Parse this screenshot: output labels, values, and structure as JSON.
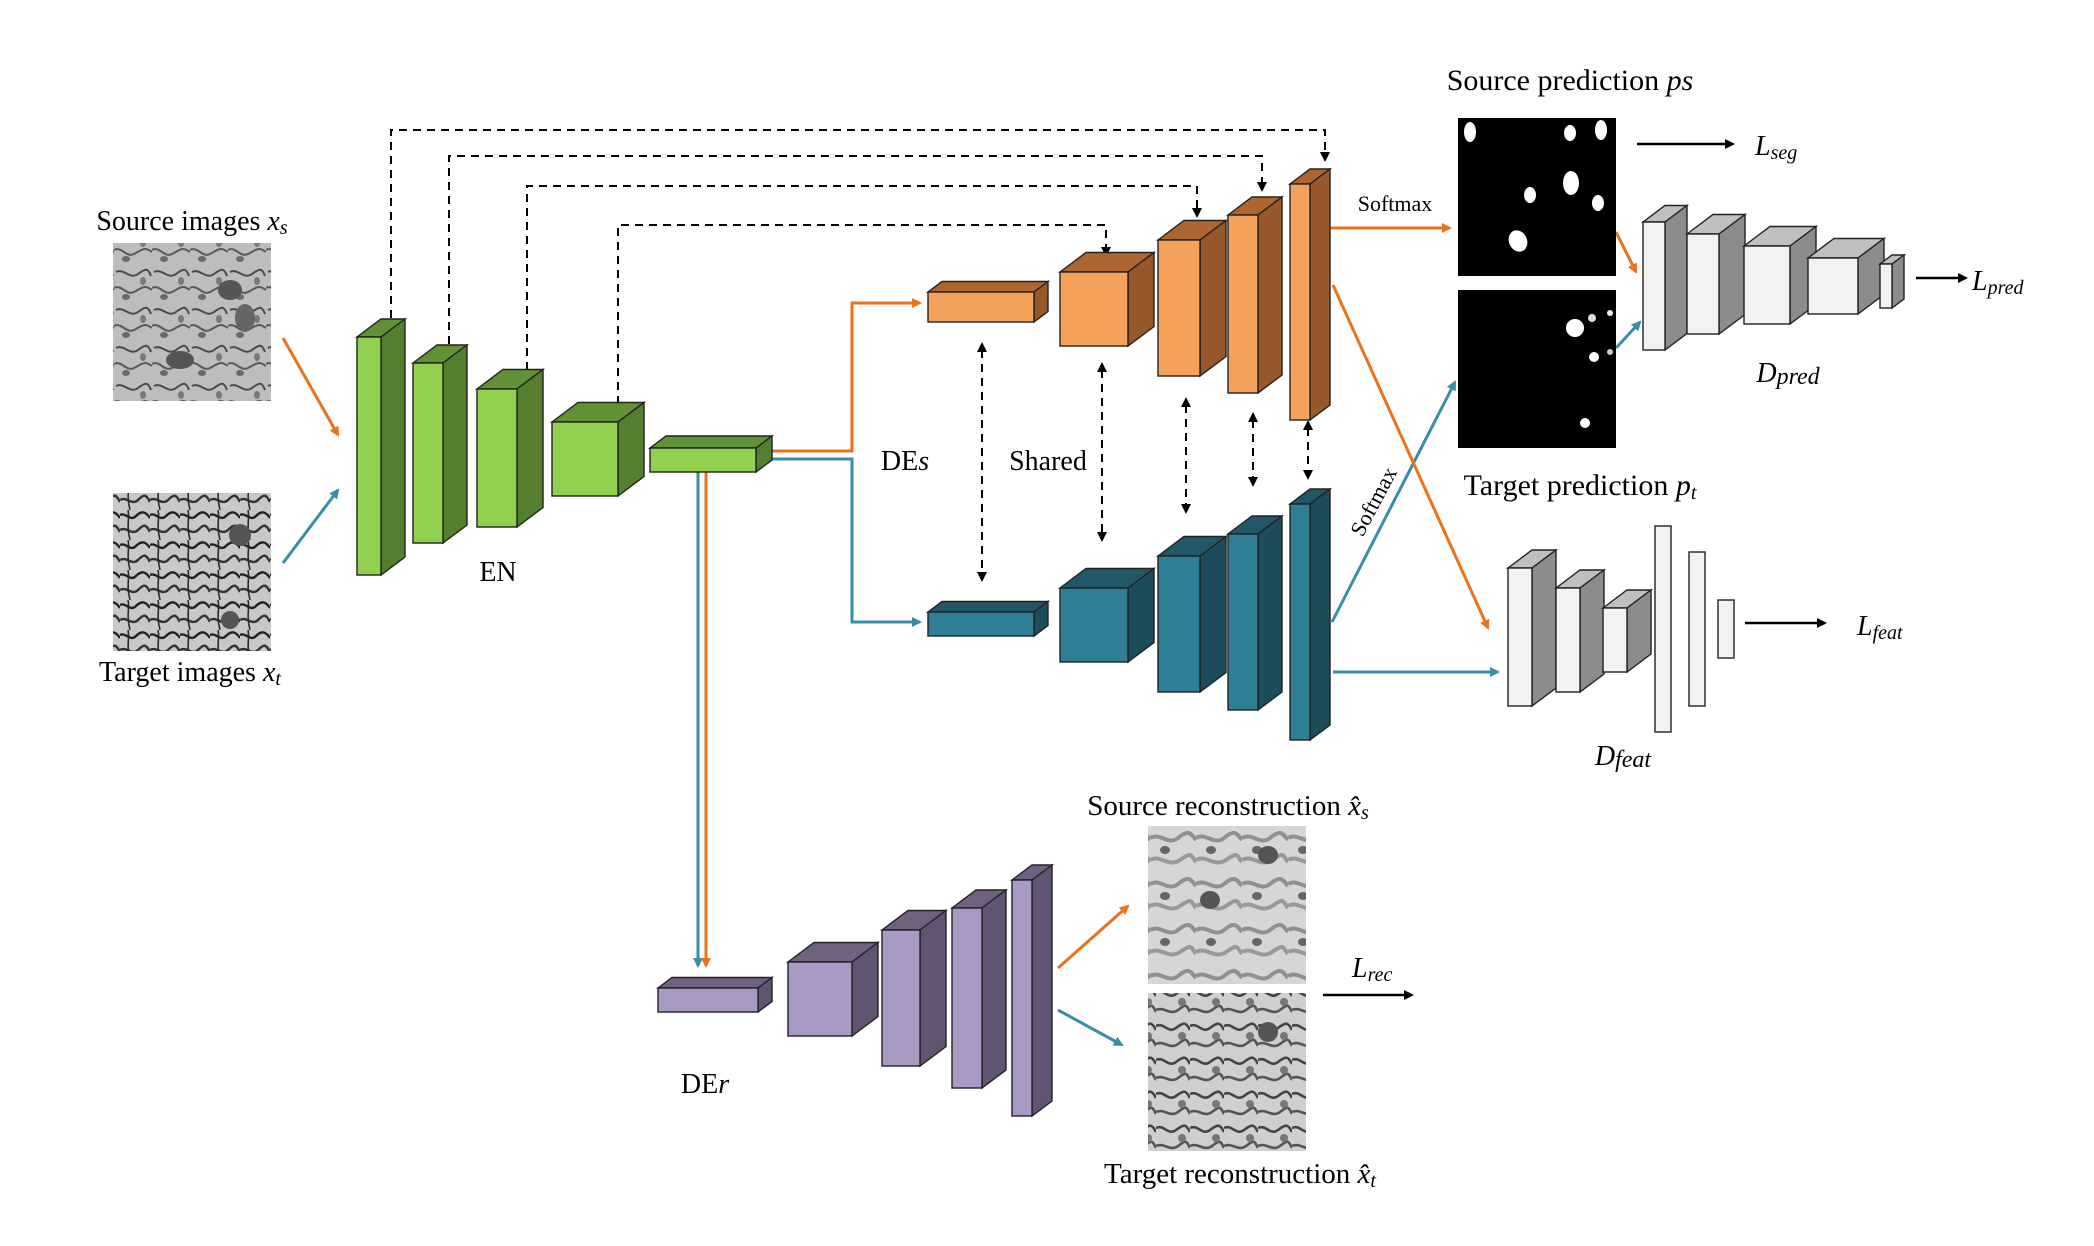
{
  "labels": {
    "source_images": "Source images",
    "source_images_sym": "x",
    "source_images_sub": "s",
    "target_images": "Target images",
    "target_images_sym": "x",
    "target_images_sub": "t",
    "encoder": "EN",
    "decoder_seg": "DE",
    "decoder_seg_sub": "s",
    "shared": "Shared",
    "decoder_rec": "DE",
    "decoder_rec_sub": "r",
    "softmax_top": "Softmax",
    "softmax_bottom": "Softmax",
    "source_prediction": "Source prediction",
    "source_prediction_sym": "ps",
    "target_prediction": "Target prediction",
    "target_prediction_sym": "p",
    "target_prediction_sub": "t",
    "loss_seg": "L",
    "loss_seg_sub": "seg",
    "loss_pred": "L",
    "loss_pred_sub": "pred",
    "disc_pred": "D",
    "disc_pred_sub": "pred",
    "disc_feat": "D",
    "disc_feat_sub": "feat",
    "loss_feat": "L",
    "loss_feat_sub": "feat",
    "source_reconstruction": "Source reconstruction",
    "source_reconstruction_sym": "x̂",
    "source_reconstruction_sub": "s",
    "target_reconstruction": "Target reconstruction",
    "target_reconstruction_sym": "x̂",
    "target_reconstruction_sub": "t",
    "loss_rec": "L",
    "loss_rec_sub": "rec"
  },
  "colors": {
    "orange_arrow": "#e8731c",
    "teal_arrow": "#3a8ea3",
    "encoder_front": "#92d050",
    "encoder_side": "#557f2f",
    "seg_front": "#f4a15c",
    "seg_side": "#97592b",
    "target_front": "#2e7f96",
    "target_side": "#1d4c5a",
    "rec_front": "#a99ac4",
    "rec_side": "#615470",
    "disc_front": "#f2f2f2",
    "disc_side": "#8c8c8c"
  }
}
